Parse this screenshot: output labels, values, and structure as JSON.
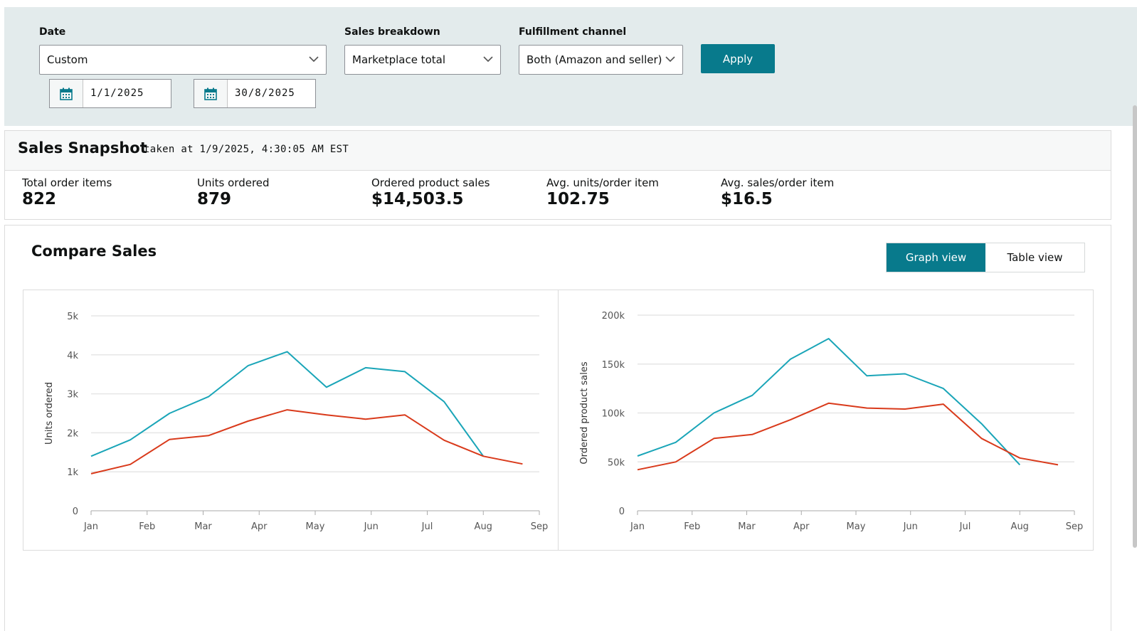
{
  "filters": {
    "date": {
      "label": "Date",
      "value": "Custom"
    },
    "breakdown": {
      "label": "Sales breakdown",
      "value": "Marketplace total"
    },
    "fulfillment": {
      "label": "Fulfillment channel",
      "value": "Both (Amazon and seller)"
    },
    "apply_label": "Apply",
    "start_date": "1/1/2025",
    "end_date": "30/8/2025"
  },
  "snapshot": {
    "title": "Sales Snapshot",
    "taken_at": "taken at 1/9/2025, 4:30:05 AM EST",
    "metrics": [
      {
        "label": "Total order items",
        "value": "822"
      },
      {
        "label": "Units ordered",
        "value": "879"
      },
      {
        "label": "Ordered product sales",
        "value": "$14,503.5"
      },
      {
        "label": "Avg. units/order item",
        "value": "102.75"
      },
      {
        "label": "Avg. sales/order item",
        "value": "$16.5"
      }
    ]
  },
  "compare": {
    "title": "Compare Sales",
    "graph_view": "Graph view",
    "table_view": "Table view"
  },
  "colors": {
    "teal": "#1aa5b8",
    "red": "#d93a1b",
    "accent": "#087a8c"
  },
  "chart_data": [
    {
      "type": "line",
      "ylabel": "Units ordered",
      "ylim": [
        0,
        5000
      ],
      "yticks": [
        0,
        1000,
        2000,
        3000,
        4000,
        5000
      ],
      "ytick_labels": [
        "0",
        "1k",
        "2k",
        "3k",
        "4k",
        "5k"
      ],
      "xticks": [
        "Jan",
        "Feb",
        "Mar",
        "Apr",
        "May",
        "Jun",
        "Jul",
        "Aug",
        "Sep"
      ],
      "series": [
        {
          "name": "teal",
          "points": [
            [
              0,
              1400
            ],
            [
              0.7,
              1820
            ],
            [
              1.4,
              2500
            ],
            [
              2.1,
              2930
            ],
            [
              2.8,
              3720
            ],
            [
              3.5,
              4080
            ],
            [
              4.2,
              3170
            ],
            [
              4.9,
              3670
            ],
            [
              5.6,
              3570
            ],
            [
              6.3,
              2800
            ],
            [
              7.0,
              1400
            ]
          ]
        },
        {
          "name": "red",
          "points": [
            [
              0,
              950
            ],
            [
              0.7,
              1190
            ],
            [
              1.4,
              1830
            ],
            [
              2.1,
              1930
            ],
            [
              2.8,
              2300
            ],
            [
              3.5,
              2590
            ],
            [
              4.2,
              2460
            ],
            [
              4.9,
              2350
            ],
            [
              5.6,
              2460
            ],
            [
              6.3,
              1810
            ],
            [
              7.0,
              1400
            ],
            [
              7.7,
              1200
            ]
          ]
        }
      ]
    },
    {
      "type": "line",
      "ylabel": "Ordered product sales",
      "ylim": [
        0,
        200000
      ],
      "yticks": [
        0,
        50000,
        100000,
        150000,
        200000
      ],
      "ytick_labels": [
        "0",
        "50k",
        "100k",
        "150k",
        "200k"
      ],
      "xticks": [
        "Jan",
        "Feb",
        "Mar",
        "Apr",
        "May",
        "Jun",
        "Jul",
        "Aug",
        "Sep"
      ],
      "series": [
        {
          "name": "teal",
          "points": [
            [
              0,
              56000
            ],
            [
              0.7,
              70000
            ],
            [
              1.4,
              100000
            ],
            [
              2.1,
              118000
            ],
            [
              2.8,
              155000
            ],
            [
              3.5,
              176000
            ],
            [
              4.2,
              138000
            ],
            [
              4.9,
              140000
            ],
            [
              5.6,
              125000
            ],
            [
              6.3,
              89000
            ],
            [
              7.0,
              47000
            ]
          ]
        },
        {
          "name": "red",
          "points": [
            [
              0,
              42000
            ],
            [
              0.7,
              50000
            ],
            [
              1.4,
              74000
            ],
            [
              2.1,
              78000
            ],
            [
              2.8,
              93000
            ],
            [
              3.5,
              110000
            ],
            [
              4.2,
              105000
            ],
            [
              4.9,
              104000
            ],
            [
              5.6,
              109000
            ],
            [
              6.3,
              74000
            ],
            [
              7.0,
              54000
            ],
            [
              7.7,
              47000
            ]
          ]
        }
      ]
    }
  ]
}
